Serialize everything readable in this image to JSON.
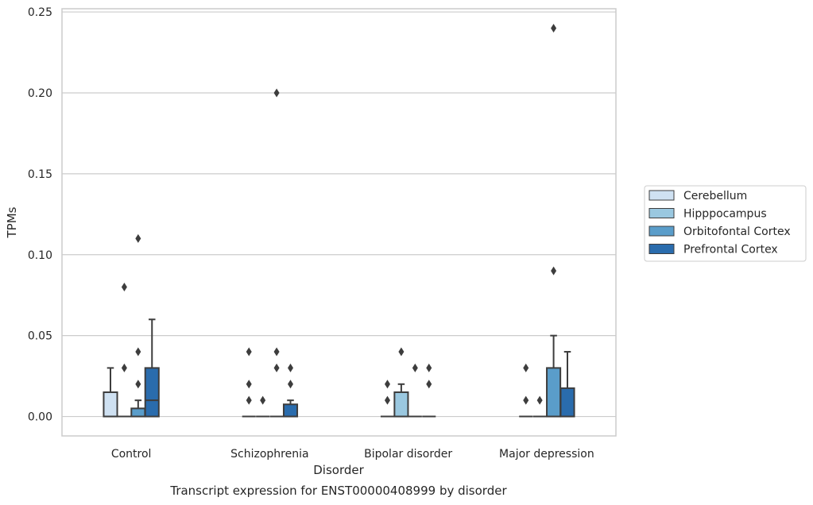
{
  "chart_data": {
    "type": "box",
    "title": "",
    "caption": "Transcript expression for ENST00000408999 by disorder",
    "xlabel": "Disorder",
    "ylabel": "TPMs",
    "ylim": [
      -0.012,
      0.252
    ],
    "yticks": [
      "0.00",
      "0.05",
      "0.10",
      "0.15",
      "0.20",
      "0.25"
    ],
    "grid": "horizontal",
    "legend_position": "right",
    "categories": [
      "Control",
      "Schizophrenia",
      "Bipolar disorder",
      "Major depression"
    ],
    "series": [
      {
        "name": "Cerebellum",
        "color": "#cfe1f2",
        "boxes": [
          {
            "q1": 0.0,
            "median": 0.0,
            "q3": 0.015,
            "whisker_low": 0.0,
            "whisker_high": 0.03,
            "outliers": []
          },
          {
            "q1": 0.0,
            "median": 0.0,
            "q3": 0.0,
            "whisker_low": 0.0,
            "whisker_high": 0.0,
            "outliers": [
              0.01,
              0.02,
              0.04
            ]
          },
          {
            "q1": 0.0,
            "median": 0.0,
            "q3": 0.0,
            "whisker_low": 0.0,
            "whisker_high": 0.0,
            "outliers": [
              0.01,
              0.02
            ]
          },
          {
            "q1": 0.0,
            "median": 0.0,
            "q3": 0.0,
            "whisker_low": 0.0,
            "whisker_high": 0.0,
            "outliers": [
              0.01,
              0.03
            ]
          }
        ]
      },
      {
        "name": "Hipppocampus",
        "color": "#9ac8e0",
        "boxes": [
          {
            "q1": 0.0,
            "median": 0.0,
            "q3": 0.0,
            "whisker_low": 0.0,
            "whisker_high": 0.0,
            "outliers": [
              0.03,
              0.08
            ]
          },
          {
            "q1": 0.0,
            "median": 0.0,
            "q3": 0.0,
            "whisker_low": 0.0,
            "whisker_high": 0.0,
            "outliers": [
              0.01
            ]
          },
          {
            "q1": 0.0,
            "median": 0.0,
            "q3": 0.015,
            "whisker_low": 0.0,
            "whisker_high": 0.02,
            "outliers": [
              0.04
            ]
          },
          {
            "q1": 0.0,
            "median": 0.0,
            "q3": 0.0,
            "whisker_low": 0.0,
            "whisker_high": 0.0,
            "outliers": [
              0.01
            ]
          }
        ]
      },
      {
        "name": "Orbitofontal Cortex",
        "color": "#5a9dca",
        "boxes": [
          {
            "q1": 0.0,
            "median": 0.0,
            "q3": 0.005,
            "whisker_low": 0.0,
            "whisker_high": 0.01,
            "outliers": [
              0.02,
              0.04,
              0.11
            ]
          },
          {
            "q1": 0.0,
            "median": 0.0,
            "q3": 0.0,
            "whisker_low": 0.0,
            "whisker_high": 0.0,
            "outliers": [
              0.03,
              0.04,
              0.2
            ]
          },
          {
            "q1": 0.0,
            "median": 0.0,
            "q3": 0.0,
            "whisker_low": 0.0,
            "whisker_high": 0.0,
            "outliers": [
              0.03
            ]
          },
          {
            "q1": 0.0,
            "median": 0.0,
            "q3": 0.03,
            "whisker_low": 0.0,
            "whisker_high": 0.05,
            "outliers": [
              0.09,
              0.24
            ]
          }
        ]
      },
      {
        "name": "Prefrontal Cortex",
        "color": "#2a6cad",
        "boxes": [
          {
            "q1": 0.0,
            "median": 0.01,
            "q3": 0.03,
            "whisker_low": 0.0,
            "whisker_high": 0.06,
            "outliers": []
          },
          {
            "q1": 0.0,
            "median": 0.0,
            "q3": 0.0075,
            "whisker_low": 0.0,
            "whisker_high": 0.01,
            "outliers": [
              0.02,
              0.03
            ]
          },
          {
            "q1": 0.0,
            "median": 0.0,
            "q3": 0.0,
            "whisker_low": 0.0,
            "whisker_high": 0.0,
            "outliers": [
              0.02,
              0.03
            ]
          },
          {
            "q1": 0.0,
            "median": 0.0,
            "q3": 0.0175,
            "whisker_low": 0.0,
            "whisker_high": 0.04,
            "outliers": []
          }
        ]
      }
    ]
  }
}
